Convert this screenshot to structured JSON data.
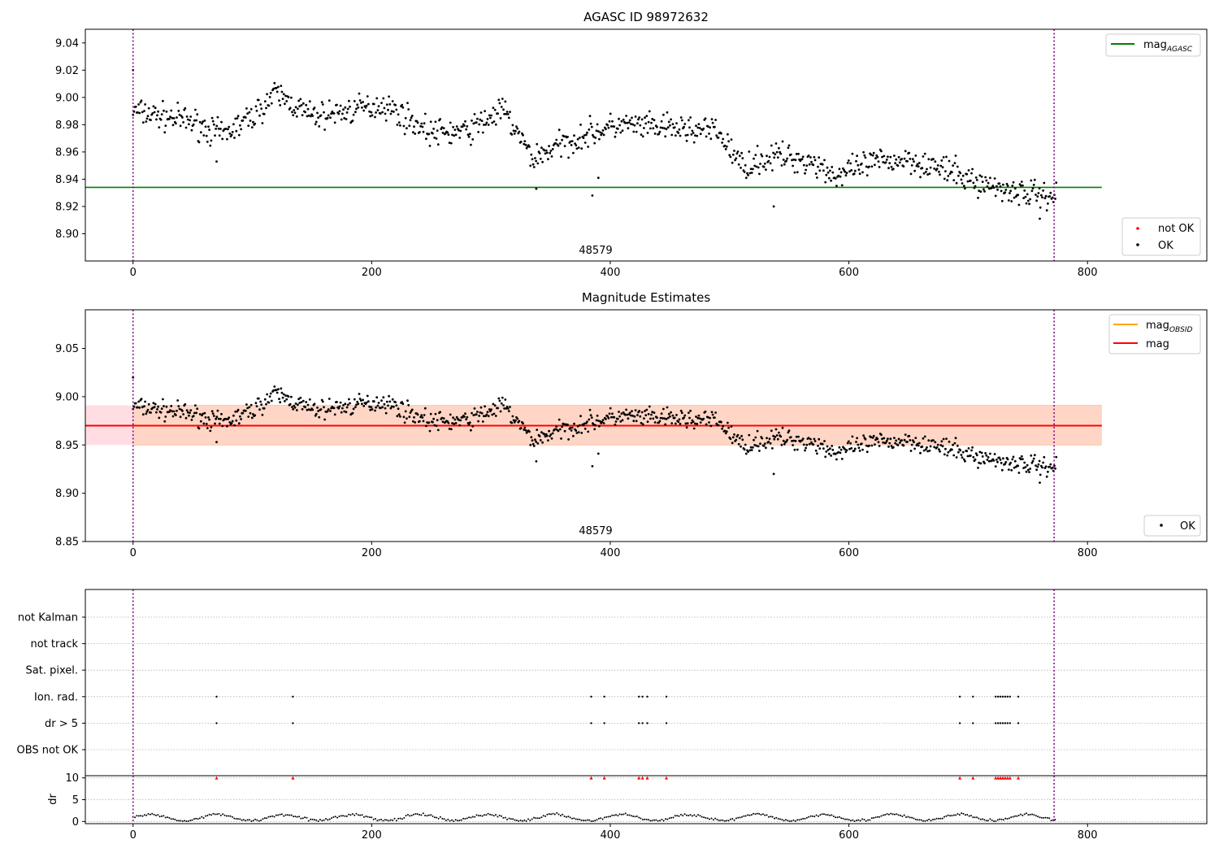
{
  "chart_data": [
    {
      "type": "scatter",
      "title": "AGASC ID 98972632",
      "xlim": [
        -40,
        900
      ],
      "ylim": [
        8.88,
        9.05
      ],
      "x_ticks": [
        0,
        200,
        400,
        600,
        800
      ],
      "y_ticks": [
        8.9,
        8.92,
        8.94,
        8.96,
        8.98,
        9.0,
        9.02,
        9.04
      ],
      "annotation": "48579",
      "reference_lines": [
        {
          "name": "mag_AGASC",
          "value": 8.934,
          "x_range": [
            -40,
            812
          ],
          "color": "#008000"
        }
      ],
      "vlines": [
        0,
        772
      ],
      "legend": {
        "lines": [
          {
            "label": "mag",
            "sub": "AGASC",
            "color": "#008000"
          }
        ],
        "points": [
          {
            "label": "not OK",
            "color": "#ff0000"
          },
          {
            "label": "OK",
            "color": "#000000"
          }
        ]
      },
      "series": [
        {
          "name": "OK",
          "trend": [
            [
              0,
              8.99
            ],
            [
              50,
              8.982
            ],
            [
              75,
              8.972
            ],
            [
              100,
              8.986
            ],
            [
              120,
              9.003
            ],
            [
              150,
              8.986
            ],
            [
              180,
              8.99
            ],
            [
              210,
              8.995
            ],
            [
              250,
              8.974
            ],
            [
              280,
              8.975
            ],
            [
              310,
              8.991
            ],
            [
              335,
              8.955
            ],
            [
              350,
              8.962
            ],
            [
              380,
              8.973
            ],
            [
              410,
              8.98
            ],
            [
              430,
              8.978
            ],
            [
              460,
              8.977
            ],
            [
              490,
              8.975
            ],
            [
              510,
              8.95
            ],
            [
              540,
              8.957
            ],
            [
              570,
              8.953
            ],
            [
              590,
              8.942
            ],
            [
              620,
              8.952
            ],
            [
              650,
              8.955
            ],
            [
              680,
              8.947
            ],
            [
              710,
              8.937
            ],
            [
              745,
              8.93
            ],
            [
              772,
              8.928
            ]
          ],
          "outliers": [
            [
              0,
              9.02
            ],
            [
              70,
              8.953
            ],
            [
              338,
              8.933
            ],
            [
              385,
              8.928
            ],
            [
              390,
              8.941
            ],
            [
              537,
              8.92
            ],
            [
              760,
              8.911
            ]
          ]
        }
      ]
    },
    {
      "type": "scatter",
      "title": "Magnitude Estimates",
      "xlim": [
        -40,
        900
      ],
      "ylim": [
        8.85,
        9.09
      ],
      "x_ticks": [
        0,
        200,
        400,
        600,
        800
      ],
      "y_ticks": [
        8.85,
        8.9,
        8.95,
        9.0,
        9.05
      ],
      "annotation": "48579",
      "bands": [
        {
          "x_range": [
            -40,
            812
          ],
          "y_range": [
            8.95,
            8.991
          ],
          "color": "#ffdde3"
        },
        {
          "x_range": [
            0,
            812
          ],
          "y_range": [
            8.95,
            8.991
          ],
          "color": "#ffd6c6"
        }
      ],
      "reference_lines": [
        {
          "name": "mag",
          "value": 8.97,
          "x_range": [
            -40,
            812
          ],
          "color": "#ff0000"
        }
      ],
      "vlines": [
        0,
        772
      ],
      "legend": {
        "lines": [
          {
            "label": "mag",
            "sub": "OBSID",
            "color": "#ffa500"
          },
          {
            "label": "mag",
            "sub": "",
            "color": "#ff0000"
          }
        ],
        "points": [
          {
            "label": "OK",
            "color": "#000000"
          }
        ]
      }
    },
    {
      "type": "scatter",
      "title": "",
      "xlim": [
        -40,
        900
      ],
      "categories": [
        "not Kalman",
        "not track",
        "Sat. pixel.",
        "Ion. rad.",
        "dr > 5",
        "OBS not OK"
      ],
      "vlines": [
        0,
        772
      ],
      "flags": {
        "Ion. rad.": [
          70,
          134,
          384,
          395,
          424,
          427,
          431,
          447,
          693,
          704,
          723,
          725,
          727,
          729,
          731,
          733,
          735,
          742
        ],
        "dr > 5": [
          70,
          134,
          384,
          395,
          424,
          427,
          431,
          447,
          693,
          704,
          723,
          725,
          727,
          729,
          731,
          733,
          735,
          742
        ]
      }
    },
    {
      "type": "scatter",
      "ylabel": "dr",
      "xlim": [
        -40,
        900
      ],
      "ylim": [
        -0.5,
        10.5
      ],
      "x_ticks": [
        0,
        200,
        400,
        600,
        800
      ],
      "y_ticks": [
        0,
        5,
        10
      ],
      "vlines": [
        0,
        772
      ],
      "clipped_markers": {
        "value": 10,
        "color": "#ff0000",
        "x": [
          70,
          134,
          384,
          395,
          424,
          427,
          431,
          447,
          693,
          704,
          723,
          725,
          727,
          729,
          731,
          733,
          735,
          742
        ]
      }
    }
  ]
}
